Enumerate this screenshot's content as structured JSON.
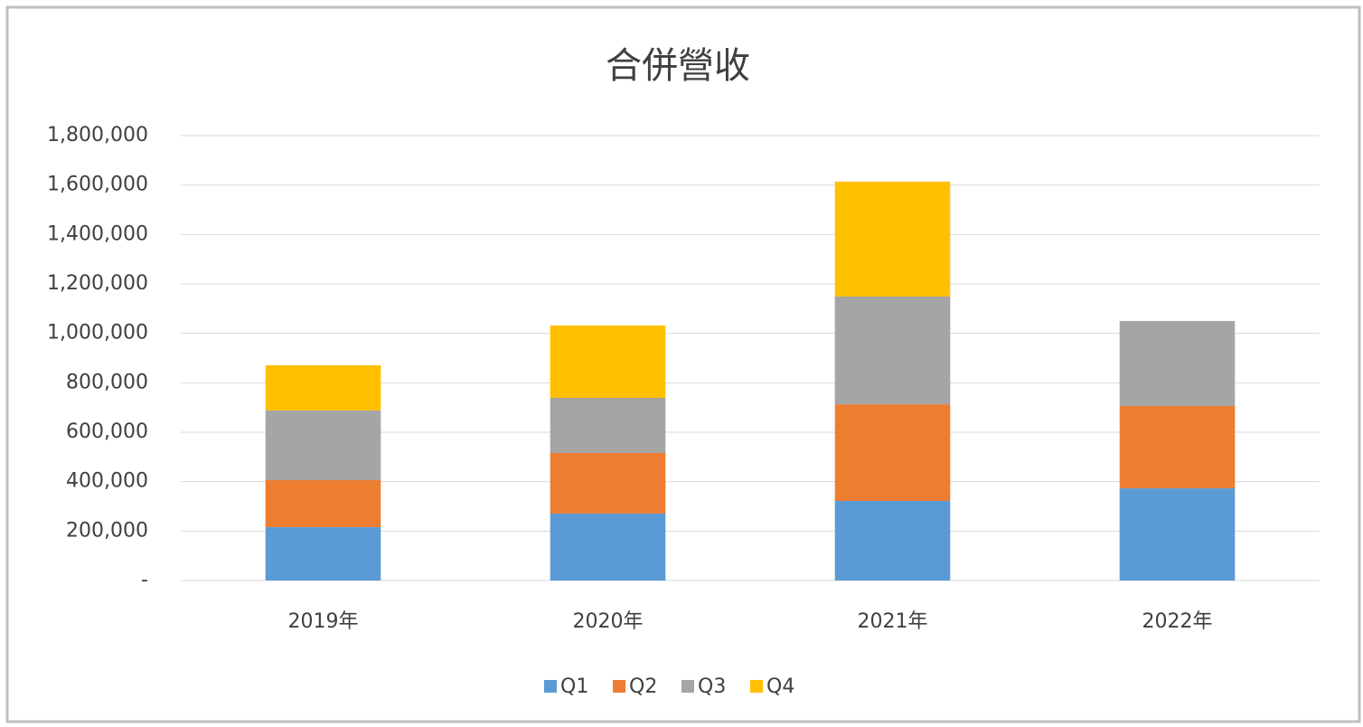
{
  "chart_data": {
    "type": "stacked_bar",
    "title": "合併營收",
    "categories": [
      "2019年",
      "2020年",
      "2021年",
      "2022年"
    ],
    "series": [
      {
        "name": "Q1",
        "color": "#5b9bd5",
        "values": [
          216000,
          271000,
          322000,
          373000
        ]
      },
      {
        "name": "Q2",
        "color": "#ed7d31",
        "values": [
          190000,
          245000,
          391000,
          333000
        ]
      },
      {
        "name": "Q3",
        "color": "#a5a5a5",
        "values": [
          282000,
          223000,
          436000,
          344000
        ]
      },
      {
        "name": "Q4",
        "color": "#ffc000",
        "values": [
          183000,
          293000,
          465000,
          null
        ]
      }
    ],
    "ylim": [
      0,
      1800000
    ],
    "yticks": [
      {
        "value": 0,
        "label": "-"
      },
      {
        "value": 200000,
        "label": "200,000"
      },
      {
        "value": 400000,
        "label": "400,000"
      },
      {
        "value": 600000,
        "label": "600,000"
      },
      {
        "value": 800000,
        "label": "800,000"
      },
      {
        "value": 1000000,
        "label": "1,000,000"
      },
      {
        "value": 1200000,
        "label": "1,200,000"
      },
      {
        "value": 1400000,
        "label": "1,400,000"
      },
      {
        "value": 1600000,
        "label": "1,600,000"
      },
      {
        "value": 1800000,
        "label": "1,800,000"
      }
    ],
    "grid": true,
    "legend": "bottom"
  }
}
